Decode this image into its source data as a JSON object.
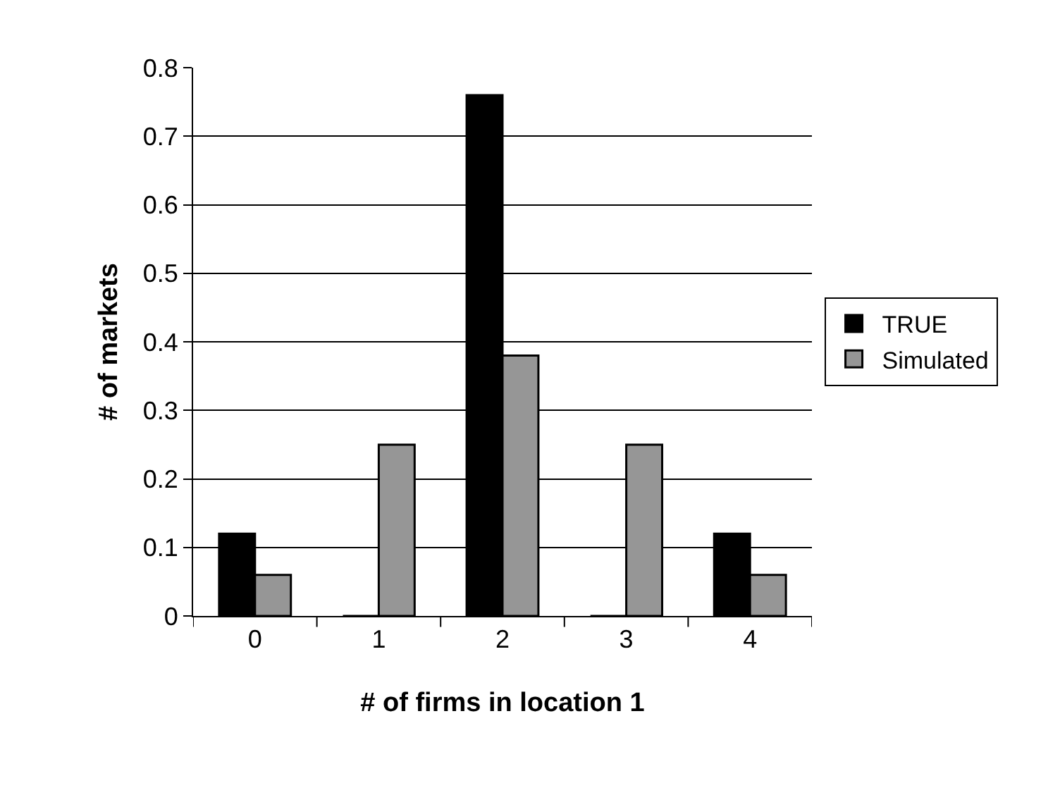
{
  "chart_data": {
    "type": "bar",
    "xlabel": "# of firms in location 1",
    "ylabel": "# of markets",
    "categories": [
      "0",
      "1",
      "2",
      "3",
      "4"
    ],
    "series": [
      {
        "name": "TRUE",
        "color": "#000000",
        "values": [
          0.12,
          0,
          0.76,
          0,
          0.12
        ]
      },
      {
        "name": "Simulated",
        "color": "#969696",
        "values": [
          0.06,
          0.25,
          0.38,
          0.25,
          0.06
        ]
      }
    ],
    "ylim": [
      0,
      0.8
    ],
    "yticks": [
      0,
      0.1,
      0.2,
      0.3,
      0.4,
      0.5,
      0.6,
      0.7,
      0.8
    ],
    "grid": "y",
    "legend": "right"
  }
}
